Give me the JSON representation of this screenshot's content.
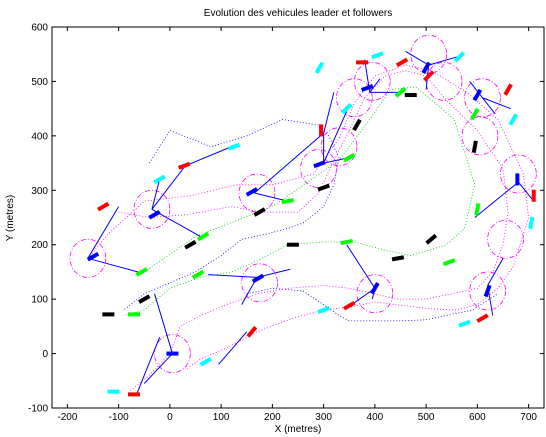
{
  "chart_data": {
    "type": "scatter",
    "title": "Evolution des vehicules leader et followers",
    "xlabel": "X (metres)",
    "ylabel": "Y (metres)",
    "xlim": [
      -230,
      730
    ],
    "ylim": [
      -100,
      600
    ],
    "xticks": [
      -200,
      -100,
      0,
      100,
      200,
      300,
      400,
      500,
      600,
      700
    ],
    "yticks": [
      -100,
      0,
      100,
      200,
      300,
      400,
      500,
      600
    ],
    "grid": false,
    "colors": {
      "red": "#ff0000",
      "blue": "#0000ff",
      "cyan": "#00ffff",
      "green": "#00ff00",
      "black": "#000000",
      "magenta": "#ff00ff",
      "leader_path": "#00cc00",
      "follower_path": "#ff00ff",
      "connector": "#0000ff"
    },
    "series": [
      {
        "color": "green",
        "style": "dotted",
        "points": [
          [
            -50,
            150
          ],
          [
            50,
            215
          ],
          [
            200,
            270
          ],
          [
            330,
            355
          ],
          [
            390,
            430
          ],
          [
            430,
            485
          ],
          [
            480,
            490
          ],
          [
            555,
            430
          ],
          [
            595,
            310
          ],
          [
            575,
            230
          ],
          [
            540,
            200
          ],
          [
            470,
            180
          ],
          [
            420,
            190
          ],
          [
            360,
            205
          ],
          [
            300,
            205
          ],
          [
            230,
            200
          ],
          [
            170,
            170
          ],
          [
            120,
            150
          ],
          [
            60,
            140
          ],
          [
            0,
            120
          ],
          [
            -50,
            80
          ],
          [
            -90,
            70
          ]
        ]
      },
      {
        "color": "magenta",
        "style": "dotted",
        "points": [
          [
            -160,
            175
          ],
          [
            -120,
            220
          ],
          [
            -50,
            280
          ],
          [
            40,
            290
          ],
          [
            130,
            310
          ],
          [
            200,
            310
          ],
          [
            280,
            330
          ],
          [
            330,
            395
          ],
          [
            360,
            460
          ],
          [
            400,
            510
          ],
          [
            460,
            530
          ],
          [
            510,
            520
          ],
          [
            580,
            480
          ],
          [
            640,
            430
          ],
          [
            690,
            330
          ],
          [
            700,
            250
          ],
          [
            670,
            160
          ],
          [
            640,
            120
          ],
          [
            600,
            90
          ],
          [
            560,
            80
          ],
          [
            510,
            82
          ],
          [
            440,
            90
          ],
          [
            400,
            95
          ],
          [
            350,
            85
          ],
          [
            300,
            80
          ],
          [
            240,
            65
          ],
          [
            170,
            40
          ],
          [
            110,
            10
          ],
          [
            60,
            -10
          ],
          [
            30,
            -30
          ]
        ]
      },
      {
        "color": "magenta",
        "style": "dotted",
        "points": [
          [
            -100,
            260
          ],
          [
            -40,
            250
          ],
          [
            30,
            255
          ],
          [
            120,
            270
          ],
          [
            180,
            260
          ],
          [
            250,
            260
          ],
          [
            290,
            295
          ],
          [
            320,
            355
          ],
          [
            350,
            410
          ],
          [
            380,
            470
          ],
          [
            420,
            510
          ],
          [
            460,
            520
          ],
          [
            500,
            510
          ],
          [
            540,
            465
          ],
          [
            600,
            410
          ],
          [
            650,
            340
          ],
          [
            660,
            260
          ],
          [
            650,
            200
          ],
          [
            630,
            150
          ],
          [
            600,
            120
          ],
          [
            550,
            110
          ],
          [
            500,
            100
          ],
          [
            440,
            100
          ],
          [
            400,
            110
          ],
          [
            350,
            120
          ],
          [
            300,
            125
          ],
          [
            230,
            120
          ],
          [
            170,
            110
          ],
          [
            110,
            90
          ],
          [
            60,
            70
          ],
          [
            20,
            50
          ],
          [
            0,
            0
          ],
          [
            -40,
            -40
          ],
          [
            -80,
            -70
          ]
        ]
      },
      {
        "color": "blue",
        "style": "dotted",
        "points": [
          [
            -40,
            350
          ],
          [
            0,
            410
          ],
          [
            80,
            380
          ],
          [
            150,
            400
          ],
          [
            220,
            430
          ],
          [
            290,
            420
          ],
          [
            310,
            400
          ],
          [
            330,
            360
          ],
          [
            320,
            310
          ],
          [
            300,
            270
          ],
          [
            260,
            240
          ],
          [
            230,
            230
          ],
          [
            190,
            220
          ],
          [
            140,
            210
          ],
          [
            100,
            180
          ],
          [
            50,
            150
          ],
          [
            0,
            130
          ],
          [
            -50,
            110
          ],
          [
            -90,
            80
          ]
        ]
      },
      {
        "color": "blue",
        "style": "dotted",
        "points": [
          [
            150,
            110
          ],
          [
            200,
            120
          ],
          [
            260,
            115
          ],
          [
            300,
            90
          ],
          [
            330,
            70
          ],
          [
            350,
            60
          ],
          [
            400,
            60
          ],
          [
            450,
            60
          ],
          [
            500,
            62
          ],
          [
            540,
            70
          ],
          [
            590,
            80
          ],
          [
            640,
            110
          ]
        ]
      }
    ],
    "circles": [
      {
        "x": -160,
        "y": 175,
        "r": 35
      },
      {
        "x": -35,
        "y": 265,
        "r": 35
      },
      {
        "x": 170,
        "y": 295,
        "r": 35
      },
      {
        "x": 290,
        "y": 340,
        "r": 35
      },
      {
        "x": 360,
        "y": 470,
        "r": 35
      },
      {
        "x": 395,
        "y": 500,
        "r": 35
      },
      {
        "x": 505,
        "y": 550,
        "r": 35
      },
      {
        "x": 535,
        "y": 500,
        "r": 35
      },
      {
        "x": 610,
        "y": 470,
        "r": 35
      },
      {
        "x": 605,
        "y": 400,
        "r": 35
      },
      {
        "x": 680,
        "y": 330,
        "r": 35
      },
      {
        "x": 655,
        "y": 210,
        "r": 35
      },
      {
        "x": 620,
        "y": 115,
        "r": 35
      },
      {
        "x": 400,
        "y": 110,
        "r": 35
      },
      {
        "x": 175,
        "y": 130,
        "r": 35
      },
      {
        "x": 5,
        "y": 0,
        "r": 35
      },
      {
        "x": 330,
        "y": 380,
        "r": 35
      }
    ],
    "connectors": [
      [
        [
          -160,
          175
        ],
        [
          -100,
          270
        ]
      ],
      [
        [
          -160,
          175
        ],
        [
          -55,
          148
        ]
      ],
      [
        [
          -35,
          265
        ],
        [
          30,
          345
        ]
      ],
      [
        [
          -35,
          265
        ],
        [
          60,
          215
        ]
      ],
      [
        [
          -35,
          265
        ],
        [
          -20,
          320
        ]
      ],
      [
        [
          30,
          345
        ],
        [
          120,
          380
        ]
      ],
      [
        [
          165,
          295
        ],
        [
          230,
          280
        ]
      ],
      [
        [
          165,
          295
        ],
        [
          300,
          405
        ]
      ],
      [
        [
          300,
          405
        ],
        [
          320,
          480
        ]
      ],
      [
        [
          300,
          405
        ],
        [
          300,
          350
        ]
      ],
      [
        [
          300,
          350
        ],
        [
          350,
          360
        ]
      ],
      [
        [
          300,
          350
        ],
        [
          345,
          445
        ]
      ],
      [
        [
          390,
          480
        ],
        [
          380,
          540
        ]
      ],
      [
        [
          390,
          480
        ],
        [
          450,
          480
        ]
      ],
      [
        [
          390,
          480
        ],
        [
          410,
          505
        ]
      ],
      [
        [
          505,
          530
        ],
        [
          500,
          485
        ]
      ],
      [
        [
          505,
          530
        ],
        [
          460,
          555
        ]
      ],
      [
        [
          505,
          530
        ],
        [
          560,
          545
        ]
      ],
      [
        [
          610,
          470
        ],
        [
          585,
          500
        ]
      ],
      [
        [
          610,
          470
        ],
        [
          665,
          450
        ]
      ],
      [
        [
          610,
          470
        ],
        [
          635,
          440
        ]
      ],
      [
        [
          680,
          315
        ],
        [
          595,
          250
        ]
      ],
      [
        [
          680,
          315
        ],
        [
          710,
          280
        ]
      ],
      [
        [
          620,
          125
        ],
        [
          650,
          175
        ]
      ],
      [
        [
          620,
          125
        ],
        [
          630,
          70
        ]
      ],
      [
        [
          400,
          120
        ],
        [
          395,
          100
        ]
      ],
      [
        [
          400,
          120
        ],
        [
          345,
          200
        ]
      ],
      [
        [
          400,
          120
        ],
        [
          355,
          90
        ]
      ],
      [
        [
          170,
          140
        ],
        [
          75,
          145
        ]
      ],
      [
        [
          170,
          140
        ],
        [
          235,
          155
        ]
      ],
      [
        [
          170,
          140
        ],
        [
          140,
          90
        ]
      ],
      [
        [
          5,
          0
        ],
        [
          -30,
          110
        ]
      ],
      [
        [
          5,
          0
        ],
        [
          -50,
          -55
        ]
      ],
      [
        [
          95,
          -20
        ],
        [
          150,
          40
        ]
      ],
      [
        [
          -65,
          -75
        ],
        [
          -20,
          30
        ]
      ]
    ],
    "segments": [
      {
        "color": "red",
        "x": 375,
        "y": 535,
        "angle": 0
      },
      {
        "color": "red",
        "x": 453,
        "y": 535,
        "angle": 30
      },
      {
        "color": "red",
        "x": 505,
        "y": 510,
        "angle": 45
      },
      {
        "color": "red",
        "x": 660,
        "y": 485,
        "angle": 60
      },
      {
        "color": "red",
        "x": 710,
        "y": 290,
        "angle": 90
      },
      {
        "color": "red",
        "x": 610,
        "y": 65,
        "angle": 30
      },
      {
        "color": "red",
        "x": 350,
        "y": 88,
        "angle": 30
      },
      {
        "color": "red",
        "x": 160,
        "y": 40,
        "angle": 50
      },
      {
        "color": "red",
        "x": -70,
        "y": -75,
        "angle": 0
      },
      {
        "color": "red",
        "x": -130,
        "y": 270,
        "angle": 30
      },
      {
        "color": "red",
        "x": 28,
        "y": 345,
        "angle": 20
      },
      {
        "color": "red",
        "x": 295,
        "y": 410,
        "angle": 90
      },
      {
        "color": "blue",
        "x": -150,
        "y": 178,
        "angle": 30
      },
      {
        "color": "blue",
        "x": -30,
        "y": 255,
        "angle": 30
      },
      {
        "color": "blue",
        "x": 160,
        "y": 297,
        "angle": 30
      },
      {
        "color": "blue",
        "x": 292,
        "y": 348,
        "angle": 20
      },
      {
        "color": "blue",
        "x": 385,
        "y": 488,
        "angle": 20
      },
      {
        "color": "blue",
        "x": 500,
        "y": 525,
        "angle": 60
      },
      {
        "color": "blue",
        "x": 600,
        "y": 475,
        "angle": 60
      },
      {
        "color": "blue",
        "x": 678,
        "y": 320,
        "angle": 90
      },
      {
        "color": "blue",
        "x": 620,
        "y": 115,
        "angle": 70
      },
      {
        "color": "blue",
        "x": 400,
        "y": 120,
        "angle": 60
      },
      {
        "color": "blue",
        "x": 172,
        "y": 138,
        "angle": 30
      },
      {
        "color": "blue",
        "x": 5,
        "y": 0,
        "angle": 0
      },
      {
        "color": "cyan",
        "x": 405,
        "y": 548,
        "angle": 20
      },
      {
        "color": "cyan",
        "x": 345,
        "y": 450,
        "angle": 45
      },
      {
        "color": "cyan",
        "x": 292,
        "y": 525,
        "angle": 60
      },
      {
        "color": "cyan",
        "x": 125,
        "y": 380,
        "angle": 20
      },
      {
        "color": "cyan",
        "x": -20,
        "y": 320,
        "angle": 30
      },
      {
        "color": "cyan",
        "x": 565,
        "y": 545,
        "angle": 45
      },
      {
        "color": "cyan",
        "x": 670,
        "y": 430,
        "angle": 60
      },
      {
        "color": "cyan",
        "x": 705,
        "y": 240,
        "angle": 80
      },
      {
        "color": "cyan",
        "x": 575,
        "y": 55,
        "angle": 20
      },
      {
        "color": "cyan",
        "x": 300,
        "y": 80,
        "angle": 20
      },
      {
        "color": "cyan",
        "x": 70,
        "y": -15,
        "angle": 30
      },
      {
        "color": "cyan",
        "x": -110,
        "y": -70,
        "angle": 0
      },
      {
        "color": "green",
        "x": 450,
        "y": 480,
        "angle": 40
      },
      {
        "color": "green",
        "x": 595,
        "y": 440,
        "angle": 60
      },
      {
        "color": "green",
        "x": 600,
        "y": 265,
        "angle": 80
      },
      {
        "color": "green",
        "x": 545,
        "y": 168,
        "angle": 20
      },
      {
        "color": "green",
        "x": 345,
        "y": 205,
        "angle": 10
      },
      {
        "color": "green",
        "x": 230,
        "y": 280,
        "angle": 10
      },
      {
        "color": "green",
        "x": 65,
        "y": 215,
        "angle": 30
      },
      {
        "color": "green",
        "x": -55,
        "y": 150,
        "angle": 30
      },
      {
        "color": "green",
        "x": 55,
        "y": 145,
        "angle": 30
      },
      {
        "color": "green",
        "x": -70,
        "y": 72,
        "angle": 0
      },
      {
        "color": "green",
        "x": 350,
        "y": 360,
        "angle": 30
      },
      {
        "color": "black",
        "x": 365,
        "y": 420,
        "angle": 60
      },
      {
        "color": "black",
        "x": 300,
        "y": 305,
        "angle": 20
      },
      {
        "color": "black",
        "x": 175,
        "y": 260,
        "angle": 30
      },
      {
        "color": "black",
        "x": 40,
        "y": 200,
        "angle": 30
      },
      {
        "color": "black",
        "x": 470,
        "y": 475,
        "angle": 0
      },
      {
        "color": "black",
        "x": 595,
        "y": 380,
        "angle": 80
      },
      {
        "color": "black",
        "x": 510,
        "y": 210,
        "angle": 40
      },
      {
        "color": "black",
        "x": 445,
        "y": 175,
        "angle": 10
      },
      {
        "color": "black",
        "x": 240,
        "y": 200,
        "angle": 0
      },
      {
        "color": "black",
        "x": -50,
        "y": 100,
        "angle": 30
      },
      {
        "color": "black",
        "x": -120,
        "y": 72,
        "angle": 0
      }
    ]
  }
}
